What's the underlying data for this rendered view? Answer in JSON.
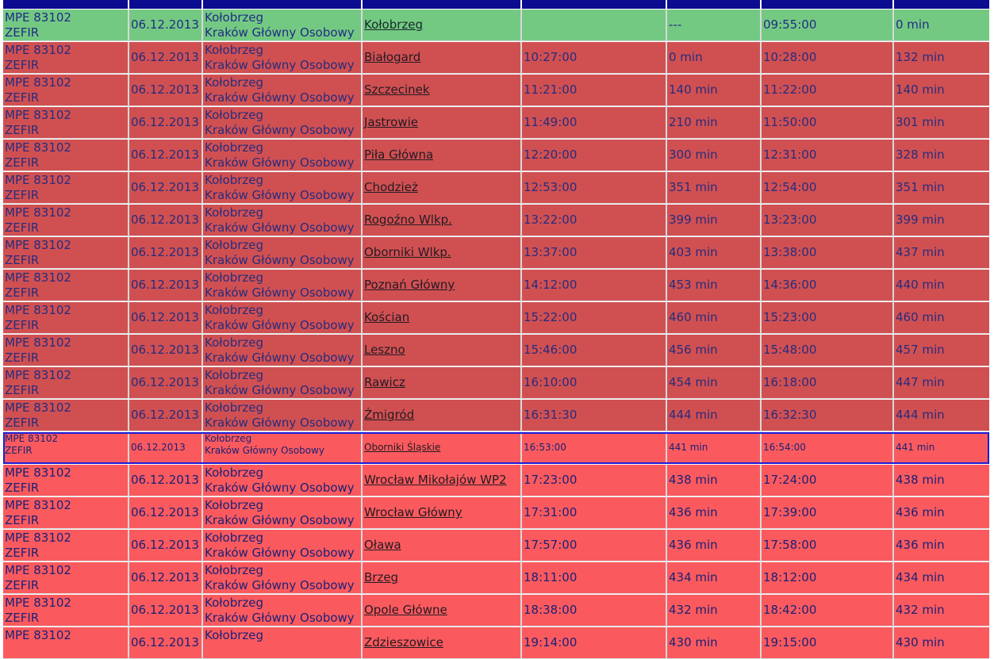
{
  "colors": {
    "header_bar": "#0b0c8f",
    "completed_start": "#74c982",
    "delayed_passed": "#d05052",
    "delayed_upcoming": "#fa5a5e",
    "current_outline": "#1b1bd8"
  },
  "rows": [
    {
      "status": "start",
      "train": "MPE 83102",
      "name": "ZEFIR",
      "date": "06.12.2013",
      "from": "Kołobrzeg",
      "to": "Kraków Główny Osobowy",
      "station": "Kołobrzeg",
      "arrival": "",
      "arrival_delay": "---",
      "departure": "09:55:00",
      "departure_delay": "0 min"
    },
    {
      "status": "passed",
      "train": "MPE 83102",
      "name": "ZEFIR",
      "date": "06.12.2013",
      "from": "Kołobrzeg",
      "to": "Kraków Główny Osobowy",
      "station": "Białogard",
      "arrival": "10:27:00",
      "arrival_delay": "0 min",
      "departure": "10:28:00",
      "departure_delay": "132 min"
    },
    {
      "status": "passed",
      "train": "MPE 83102",
      "name": "ZEFIR",
      "date": "06.12.2013",
      "from": "Kołobrzeg",
      "to": "Kraków Główny Osobowy",
      "station": "Szczecinek",
      "arrival": "11:21:00",
      "arrival_delay": "140 min",
      "departure": "11:22:00",
      "departure_delay": "140 min"
    },
    {
      "status": "passed",
      "train": "MPE 83102",
      "name": "ZEFIR",
      "date": "06.12.2013",
      "from": "Kołobrzeg",
      "to": "Kraków Główny Osobowy",
      "station": "Jastrowie",
      "arrival": "11:49:00",
      "arrival_delay": "210 min",
      "departure": "11:50:00",
      "departure_delay": "301 min"
    },
    {
      "status": "passed",
      "train": "MPE 83102",
      "name": "ZEFIR",
      "date": "06.12.2013",
      "from": "Kołobrzeg",
      "to": "Kraków Główny Osobowy",
      "station": "Piła Główna",
      "arrival": "12:20:00",
      "arrival_delay": "300 min",
      "departure": "12:31:00",
      "departure_delay": "328 min"
    },
    {
      "status": "passed",
      "train": "MPE 83102",
      "name": "ZEFIR",
      "date": "06.12.2013",
      "from": "Kołobrzeg",
      "to": "Kraków Główny Osobowy",
      "station": "Chodzież",
      "arrival": "12:53:00",
      "arrival_delay": "351 min",
      "departure": "12:54:00",
      "departure_delay": "351 min"
    },
    {
      "status": "passed",
      "train": "MPE 83102",
      "name": "ZEFIR",
      "date": "06.12.2013",
      "from": "Kołobrzeg",
      "to": "Kraków Główny Osobowy",
      "station": "Rogoźno Wlkp.",
      "arrival": "13:22:00",
      "arrival_delay": "399 min",
      "departure": "13:23:00",
      "departure_delay": "399 min"
    },
    {
      "status": "passed",
      "train": "MPE 83102",
      "name": "ZEFIR",
      "date": "06.12.2013",
      "from": "Kołobrzeg",
      "to": "Kraków Główny Osobowy",
      "station": "Oborniki Wlkp.",
      "arrival": "13:37:00",
      "arrival_delay": "403 min",
      "departure": "13:38:00",
      "departure_delay": "437 min"
    },
    {
      "status": "passed",
      "train": "MPE 83102",
      "name": "ZEFIR",
      "date": "06.12.2013",
      "from": "Kołobrzeg",
      "to": "Kraków Główny Osobowy",
      "station": "Poznań Główny",
      "arrival": "14:12:00",
      "arrival_delay": "453 min",
      "departure": "14:36:00",
      "departure_delay": "440 min"
    },
    {
      "status": "passed",
      "train": "MPE 83102",
      "name": "ZEFIR",
      "date": "06.12.2013",
      "from": "Kołobrzeg",
      "to": "Kraków Główny Osobowy",
      "station": "Kościan",
      "arrival": "15:22:00",
      "arrival_delay": "460 min",
      "departure": "15:23:00",
      "departure_delay": "460 min"
    },
    {
      "status": "passed",
      "train": "MPE 83102",
      "name": "ZEFIR",
      "date": "06.12.2013",
      "from": "Kołobrzeg",
      "to": "Kraków Główny Osobowy",
      "station": "Leszno",
      "arrival": "15:46:00",
      "arrival_delay": "456 min",
      "departure": "15:48:00",
      "departure_delay": "457 min"
    },
    {
      "status": "passed",
      "train": "MPE 83102",
      "name": "ZEFIR",
      "date": "06.12.2013",
      "from": "Kołobrzeg",
      "to": "Kraków Główny Osobowy",
      "station": "Rawicz",
      "arrival": "16:10:00",
      "arrival_delay": "454 min",
      "departure": "16:18:00",
      "departure_delay": "447 min"
    },
    {
      "status": "passed",
      "train": "MPE 83102",
      "name": "ZEFIR",
      "date": "06.12.2013",
      "from": "Kołobrzeg",
      "to": "Kraków Główny Osobowy",
      "station": "Żmigród",
      "arrival": "16:31:30",
      "arrival_delay": "444 min",
      "departure": "16:32:30",
      "departure_delay": "444 min"
    },
    {
      "status": "current",
      "train": "MPE 83102",
      "name": "ZEFIR",
      "date": "06.12.2013",
      "from": "Kołobrzeg",
      "to": "Kraków Główny Osobowy",
      "station": "Oborniki Śląskie",
      "arrival": "16:53:00",
      "arrival_delay": "441 min",
      "departure": "16:54:00",
      "departure_delay": "441 min"
    },
    {
      "status": "upcoming",
      "train": "MPE 83102",
      "name": "ZEFIR",
      "date": "06.12.2013",
      "from": "Kołobrzeg",
      "to": "Kraków Główny Osobowy",
      "station": "Wrocław Mikołajów WP2",
      "arrival": "17:23:00",
      "arrival_delay": "438 min",
      "departure": "17:24:00",
      "departure_delay": "438 min"
    },
    {
      "status": "upcoming",
      "train": "MPE 83102",
      "name": "ZEFIR",
      "date": "06.12.2013",
      "from": "Kołobrzeg",
      "to": "Kraków Główny Osobowy",
      "station": "Wrocław Główny",
      "arrival": "17:31:00",
      "arrival_delay": "436 min",
      "departure": "17:39:00",
      "departure_delay": "436 min"
    },
    {
      "status": "upcoming",
      "train": "MPE 83102",
      "name": "ZEFIR",
      "date": "06.12.2013",
      "from": "Kołobrzeg",
      "to": "Kraków Główny Osobowy",
      "station": "Oława",
      "arrival": "17:57:00",
      "arrival_delay": "436 min",
      "departure": "17:58:00",
      "departure_delay": "436 min"
    },
    {
      "status": "upcoming",
      "train": "MPE 83102",
      "name": "ZEFIR",
      "date": "06.12.2013",
      "from": "Kołobrzeg",
      "to": "Kraków Główny Osobowy",
      "station": "Brzeg",
      "arrival": "18:11:00",
      "arrival_delay": "434 min",
      "departure": "18:12:00",
      "departure_delay": "434 min"
    },
    {
      "status": "upcoming",
      "train": "MPE 83102",
      "name": "ZEFIR",
      "date": "06.12.2013",
      "from": "Kołobrzeg",
      "to": "Kraków Główny Osobowy",
      "station": "Opole Główne",
      "arrival": "18:38:00",
      "arrival_delay": "432 min",
      "departure": "18:42:00",
      "departure_delay": "432 min"
    },
    {
      "status": "upcoming",
      "train": "MPE 83102",
      "name": "",
      "date": "06.12.2013",
      "from": "Kołobrzeg",
      "to": "",
      "station": "Zdzieszowice",
      "arrival": "19:14:00",
      "arrival_delay": "430 min",
      "departure": "19:15:00",
      "departure_delay": "430 min"
    }
  ]
}
